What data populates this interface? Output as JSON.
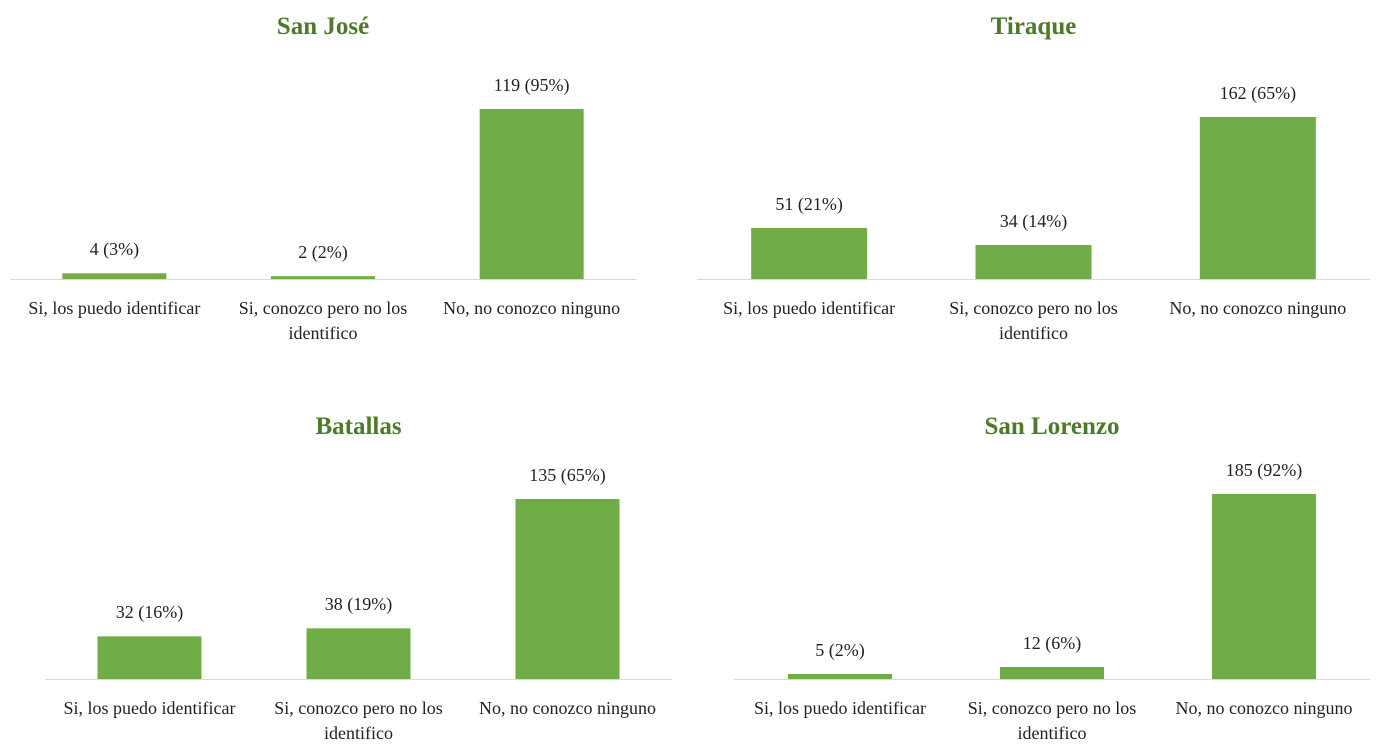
{
  "chart_data": [
    {
      "type": "bar",
      "title": "San José",
      "categories": [
        "Si, los puedo identificar",
        "Si, conozco pero no los identifico",
        "No, no conozco ninguno"
      ],
      "values": [
        4,
        2,
        119
      ],
      "value_labels": [
        "4 (3%)",
        "2 (2%)",
        "119 (95%)"
      ],
      "color": "#70ad47",
      "ylim": [
        0,
        140
      ]
    },
    {
      "type": "bar",
      "title": "Tiraque",
      "categories": [
        "Si, los puedo identificar",
        "Si, conozco pero no los identifico",
        "No, no conozco ninguno"
      ],
      "values": [
        51,
        34,
        162
      ],
      "value_labels": [
        "51 (21%)",
        "34 (14%)",
        "162 (65%)"
      ],
      "color": "#70ad47",
      "ylim": [
        0,
        200
      ]
    },
    {
      "type": "bar",
      "title": "Batallas",
      "categories": [
        "Si, los puedo identificar",
        "Si, conozco pero no los identifico",
        "No, no conozco ninguno"
      ],
      "values": [
        32,
        38,
        135
      ],
      "value_labels": [
        "32 (16%)",
        "38 (19%)",
        "135 (65%)"
      ],
      "color": "#70ad47",
      "ylim": [
        0,
        150
      ]
    },
    {
      "type": "bar",
      "title": "San Lorenzo",
      "categories": [
        "Si, los puedo identificar",
        "Si, conozco pero no los identifico",
        "No, no conozco ninguno"
      ],
      "values": [
        5,
        12,
        185
      ],
      "value_labels": [
        "5 (2%)",
        "12 (6%)",
        "185 (92%)"
      ],
      "color": "#70ad47",
      "ylim": [
        0,
        200
      ]
    }
  ]
}
